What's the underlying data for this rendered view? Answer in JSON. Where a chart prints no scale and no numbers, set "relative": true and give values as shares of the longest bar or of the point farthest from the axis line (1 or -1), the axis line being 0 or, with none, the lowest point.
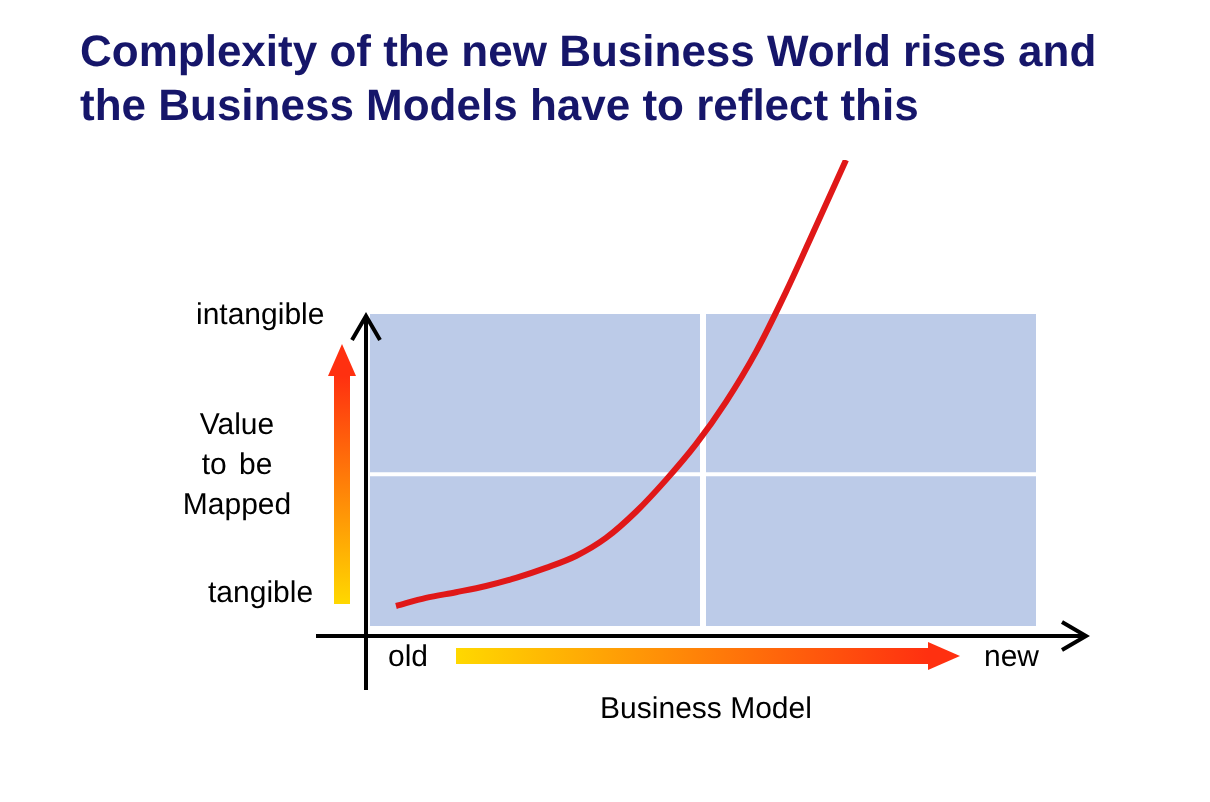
{
  "chart_data": {
    "type": "line",
    "relative": true,
    "title": "Complexity of the new Business World rises and the Business Models have to reflect this",
    "xlabel": "Business Model",
    "ylabel": "Value to be Mapped",
    "annotations": [
      "intangible",
      "tangible",
      "old",
      "new"
    ],
    "ref_lines": [
      {
        "axis": "y",
        "value": 0.34,
        "color": "#ffffff"
      }
    ],
    "categories": [
      null,
      null,
      null,
      null,
      null,
      null,
      null,
      null,
      null,
      null,
      null,
      null,
      null,
      null,
      null,
      null,
      null,
      null,
      null,
      null,
      null,
      null,
      null,
      null,
      null
    ],
    "series": [
      {
        "color": "#e01818",
        "values": [
          null,
          0.063,
          0.08,
          0.092,
          0.105,
          0.122,
          0.143,
          0.168,
          0.206,
          0.261,
          0.328,
          0.403,
          0.492,
          0.597,
          0.723,
          0.861,
          1,
          null,
          null,
          null,
          null,
          null,
          null,
          null,
          null
        ]
      }
    ]
  }
}
